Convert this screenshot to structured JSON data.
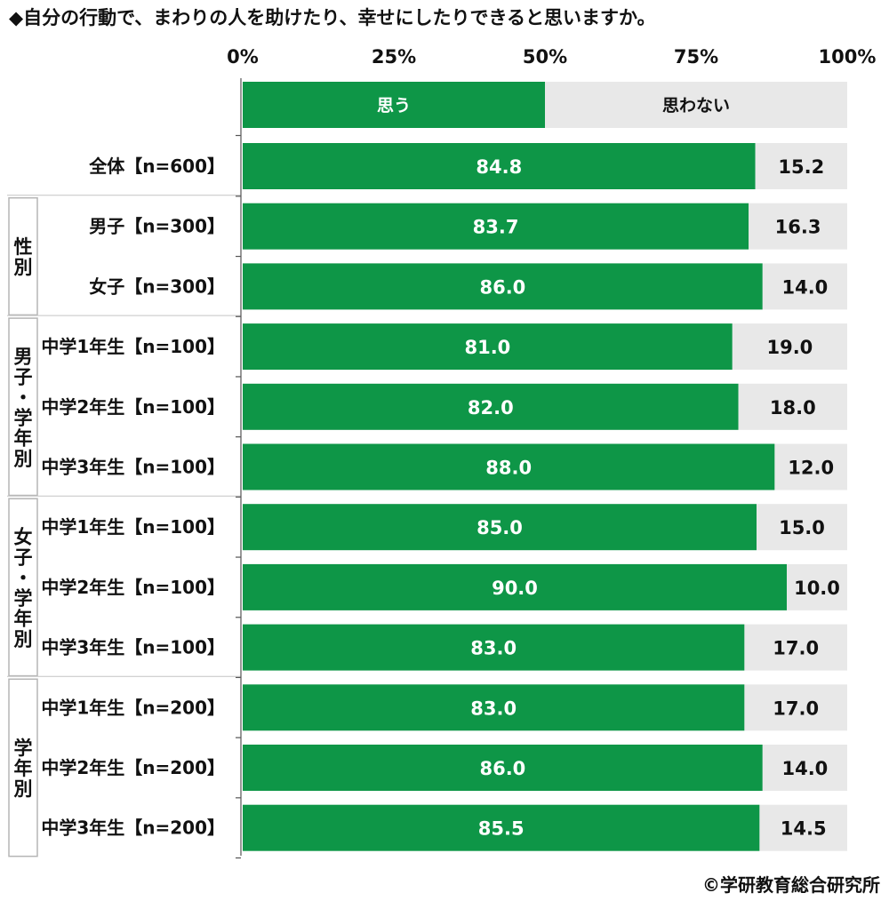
{
  "title": "◆自分の行動で、まわりの人を助けたり、幸せにしたりできると思いますか。",
  "copyright": "©学研教育総合研究所",
  "chart_data": {
    "type": "bar",
    "orientation": "horizontal",
    "stacked": true,
    "percent_stacked": true,
    "xlim": [
      0,
      100
    ],
    "ticks": [
      "0%",
      "25%",
      "50%",
      "75%",
      "100%"
    ],
    "legend": {
      "position": "top",
      "labels": [
        "思う",
        "思わない"
      ]
    },
    "colors": {
      "yes": "#0e9647",
      "no": "#e8e8e8"
    },
    "categories": [
      "全体【n=600】",
      "男子【n=300】",
      "女子【n=300】",
      "中学1年生【n=100】",
      "中学2年生【n=100】",
      "中学3年生【n=100】",
      "中学1年生【n=100】",
      "中学2年生【n=100】",
      "中学3年生【n=100】",
      "中学1年生【n=200】",
      "中学2年生【n=200】",
      "中学3年生【n=200】"
    ],
    "series": [
      {
        "name": "思う",
        "values": [
          84.8,
          83.7,
          86.0,
          81.0,
          82.0,
          88.0,
          85.0,
          90.0,
          83.0,
          83.0,
          86.0,
          85.5
        ]
      },
      {
        "name": "思わない",
        "values": [
          15.2,
          16.3,
          14.0,
          19.0,
          18.0,
          12.0,
          15.0,
          10.0,
          17.0,
          17.0,
          14.0,
          14.5
        ]
      }
    ],
    "groups": [
      {
        "label": "性別",
        "rows": [
          1,
          2
        ]
      },
      {
        "label": "男子・学年別",
        "rows": [
          3,
          4,
          5
        ]
      },
      {
        "label": "女子・学年別",
        "rows": [
          6,
          7,
          8
        ]
      },
      {
        "label": "学年別",
        "rows": [
          9,
          10,
          11
        ]
      }
    ]
  }
}
